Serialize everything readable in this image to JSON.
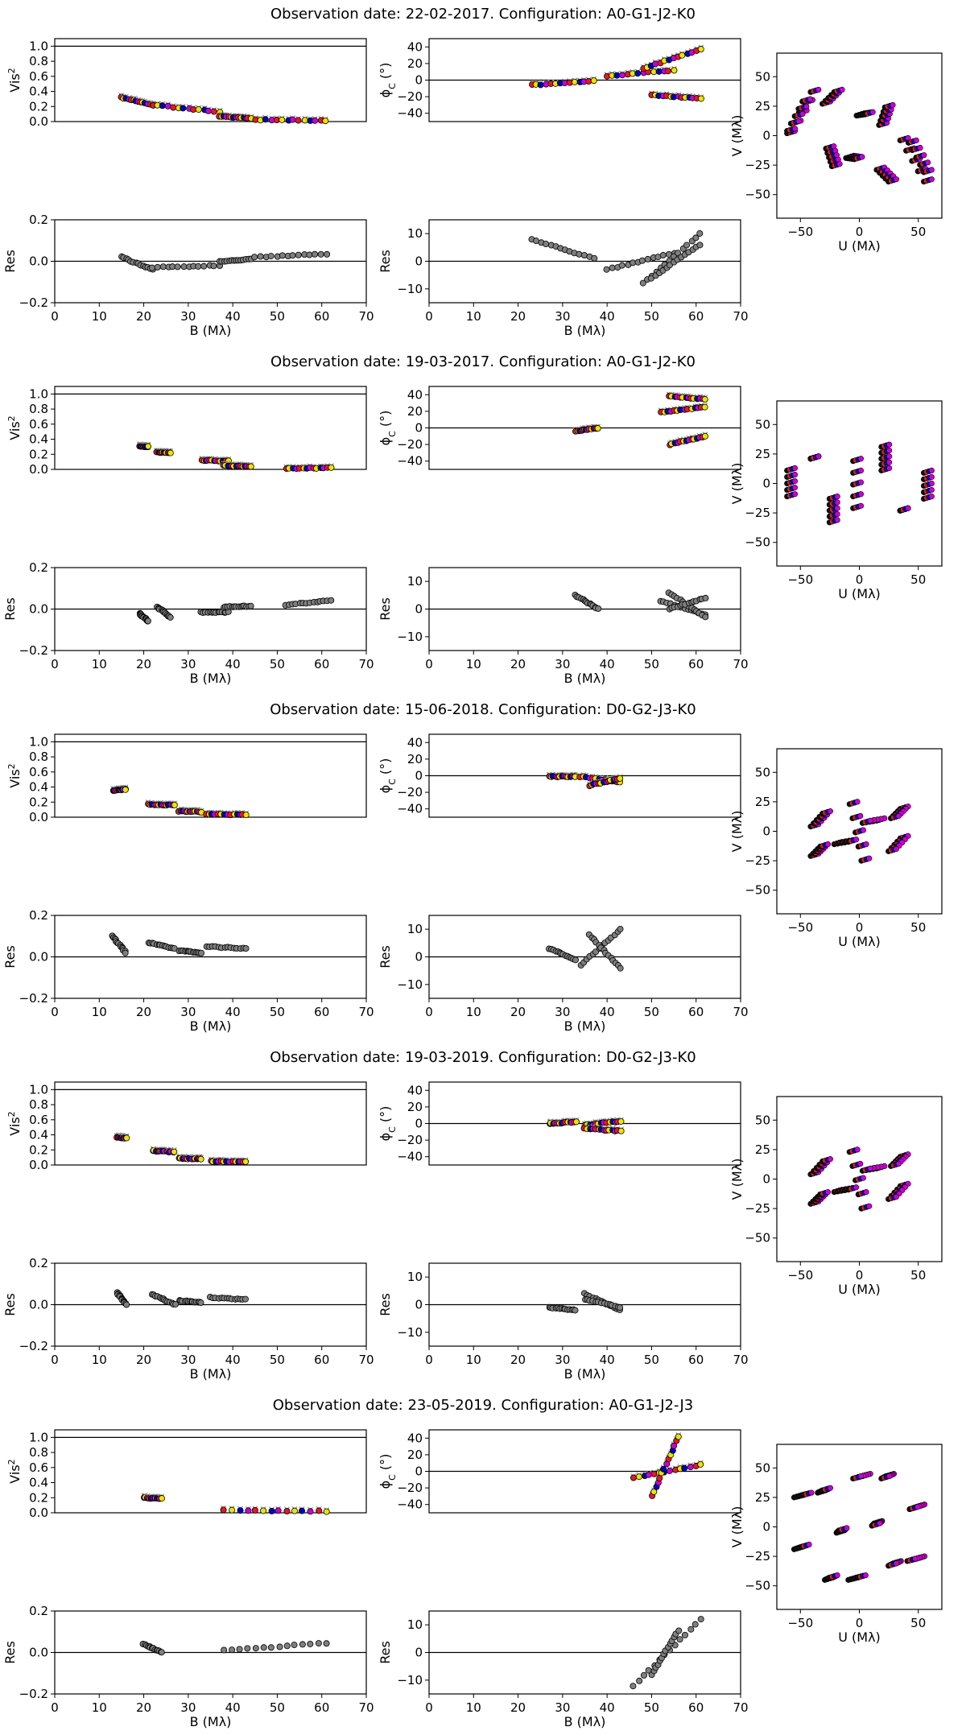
{
  "chart_data": {
    "type": "scatter",
    "figure": "Interferometric squared visibilities, closure phases and uv-coverage per observation epoch",
    "colors": {
      "axis": "#000000",
      "model": "#8c8c8c",
      "residual": "#7f7f7f",
      "channels": [
        "#e41a1c",
        "#e6e600",
        "#0000cc",
        "#cc00cc",
        "#111111"
      ]
    },
    "axis_labels": {
      "vis2_y": "Vis",
      "vis2_y_sup": "2",
      "phi_y": "ϕ",
      "phi_y_sub": "C",
      "phi_y_unit": " (°)",
      "res_y": "Res",
      "baseline_x": "B (Mλ)",
      "uv_x": "U (Mλ)",
      "uv_y": "V (Mλ)"
    },
    "ticks": {
      "vis2_y": [
        "0.0",
        "0.2",
        "0.4",
        "0.6",
        "0.8",
        "1.0"
      ],
      "vis2_res_y": [
        "−0.2",
        "0.0",
        "0.2"
      ],
      "phi_y": [
        "−40",
        "−20",
        "0",
        "20",
        "40"
      ],
      "phi_res_y": [
        "−10",
        "0",
        "10"
      ],
      "baseline_x": [
        "0",
        "10",
        "20",
        "30",
        "40",
        "50",
        "60",
        "70"
      ],
      "uv_x": [
        "−50",
        "0",
        "50"
      ],
      "uv_y": [
        "−50",
        "−25",
        "0",
        "25",
        "50"
      ]
    },
    "ranges": {
      "baseline_x": [
        0,
        70
      ],
      "vis2_y": [
        0,
        1.1
      ],
      "vis2_res_y": [
        -0.2,
        0.2
      ],
      "phi_y": [
        -50,
        50
      ],
      "phi_res_y": [
        -15,
        15
      ],
      "uv": [
        -70,
        70
      ]
    },
    "epochs": [
      {
        "title": "Observation date: 22-02-2017. Configuration: A0-G1-J2-K0",
        "vis2_groups": [
          {
            "x": [
              15,
              22
            ],
            "y": [
              0.32,
              0.22
            ],
            "res": [
              0.02,
              -0.04
            ]
          },
          {
            "x": [
              22,
              37
            ],
            "y": [
              0.22,
              0.13
            ],
            "res": [
              -0.03,
              -0.02
            ]
          },
          {
            "x": [
              37,
              44
            ],
            "y": [
              0.07,
              0.04
            ],
            "res": [
              0.0,
              0.01
            ]
          },
          {
            "x": [
              45,
              61
            ],
            "y": [
              0.025,
              0.015
            ],
            "res": [
              0.02,
              0.035
            ]
          }
        ],
        "phi_groups": [
          {
            "x": [
              23,
              37
            ],
            "y": [
              -6,
              -1
            ],
            "res": [
              8,
              1
            ]
          },
          {
            "x": [
              40,
              55
            ],
            "y": [
              5,
              12
            ],
            "res": [
              -3,
              3
            ]
          },
          {
            "x": [
              48,
              61
            ],
            "y": [
              14,
              37
            ],
            "res": [
              -8,
              10
            ]
          },
          {
            "x": [
              50,
              61
            ],
            "y": [
              -18,
              -22
            ],
            "res": [
              -6,
              6
            ]
          }
        ],
        "uv_groups": [
          {
            "u": [
              -58,
              -38
            ],
            "v": [
              3,
              38
            ]
          },
          {
            "u": [
              38,
              58
            ],
            "v": [
              -3,
              -38
            ]
          },
          {
            "u": [
              -28,
              -18
            ],
            "v": [
              28,
              38
            ]
          },
          {
            "u": [
              18,
              28
            ],
            "v": [
              -28,
              -38
            ]
          },
          {
            "u": [
              -25,
              -20
            ],
            "v": [
              -10,
              -25
            ]
          },
          {
            "u": [
              20,
              25
            ],
            "v": [
              10,
              25
            ]
          },
          {
            "u": [
              -8,
              -1
            ],
            "v": [
              -18,
              -19
            ]
          },
          {
            "u": [
              1,
              8
            ],
            "v": [
              18,
              19
            ]
          },
          {
            "u": [
              45,
              58
            ],
            "v": [
              -5,
              -30
            ]
          },
          {
            "u": [
              -58,
              -45
            ],
            "v": [
              5,
              30
            ]
          }
        ]
      },
      {
        "title": "Observation date: 19-03-2017. Configuration: A0-G1-J2-K0",
        "vis2_groups": [
          {
            "x": [
              19,
              21
            ],
            "y": [
              0.31,
              0.3
            ],
            "res": [
              -0.02,
              -0.06
            ]
          },
          {
            "x": [
              23,
              26
            ],
            "y": [
              0.23,
              0.22
            ],
            "res": [
              0.01,
              -0.04
            ]
          },
          {
            "x": [
              33,
              39
            ],
            "y": [
              0.12,
              0.11
            ],
            "res": [
              -0.015,
              -0.015
            ]
          },
          {
            "x": [
              38,
              44
            ],
            "y": [
              0.05,
              0.04
            ],
            "res": [
              0.01,
              0.015
            ]
          },
          {
            "x": [
              52,
              62
            ],
            "y": [
              0.015,
              0.02
            ],
            "res": [
              0.02,
              0.04
            ]
          }
        ],
        "phi_groups": [
          {
            "x": [
              33,
              38
            ],
            "y": [
              -4,
              0
            ],
            "res": [
              5,
              0
            ]
          },
          {
            "x": [
              52,
              62
            ],
            "y": [
              19,
              25
            ],
            "res": [
              3,
              -2
            ]
          },
          {
            "x": [
              54,
              62
            ],
            "y": [
              38,
              35
            ],
            "res": [
              6,
              -3
            ]
          },
          {
            "x": [
              54,
              62
            ],
            "y": [
              -20,
              -10
            ],
            "res": [
              0,
              4
            ]
          }
        ],
        "uv_groups": [
          {
            "u": [
              -58,
              -58
            ],
            "v": [
              12,
              -10
            ]
          },
          {
            "u": [
              58,
              58
            ],
            "v": [
              -12,
              10
            ]
          },
          {
            "u": [
              -38,
              -38
            ],
            "v": [
              22,
              22
            ]
          },
          {
            "u": [
              38,
              38
            ],
            "v": [
              -22,
              -22
            ]
          },
          {
            "u": [
              -22,
              -22
            ],
            "v": [
              -12,
              -32
            ]
          },
          {
            "u": [
              22,
              22
            ],
            "v": [
              12,
              32
            ]
          },
          {
            "u": [
              -2,
              -2
            ],
            "v": [
              20,
              -20
            ]
          }
        ]
      },
      {
        "title": "Observation date: 15-06-2018. Configuration: D0-G2-J3-K0",
        "vis2_groups": [
          {
            "x": [
              13,
              16
            ],
            "y": [
              0.35,
              0.37
            ],
            "res": [
              0.1,
              0.02
            ]
          },
          {
            "x": [
              21,
              27
            ],
            "y": [
              0.17,
              0.16
            ],
            "res": [
              0.07,
              0.04
            ]
          },
          {
            "x": [
              28,
              33
            ],
            "y": [
              0.08,
              0.07
            ],
            "res": [
              0.03,
              0.02
            ]
          },
          {
            "x": [
              34,
              43
            ],
            "y": [
              0.04,
              0.03
            ],
            "res": [
              0.05,
              0.04
            ]
          }
        ],
        "phi_groups": [
          {
            "x": [
              27,
              33
            ],
            "y": [
              -1,
              -1
            ],
            "res": [
              3,
              -1
            ]
          },
          {
            "x": [
              34,
              43
            ],
            "y": [
              -1,
              -8
            ],
            "res": [
              -3,
              10
            ]
          },
          {
            "x": [
              36,
              43
            ],
            "y": [
              -12,
              -3
            ],
            "res": [
              8,
              -4
            ]
          }
        ],
        "uv_groups": [
          {
            "u": [
              -38,
              -28
            ],
            "v": [
              5,
              16
            ]
          },
          {
            "u": [
              38,
              28
            ],
            "v": [
              -5,
              -16
            ]
          },
          {
            "u": [
              -38,
              -30
            ],
            "v": [
              -20,
              -12
            ]
          },
          {
            "u": [
              38,
              30
            ],
            "v": [
              20,
              12
            ]
          },
          {
            "u": [
              -18,
              -6
            ],
            "v": [
              -10,
              -8
            ]
          },
          {
            "u": [
              18,
              6
            ],
            "v": [
              10,
              8
            ]
          },
          {
            "u": [
              -5,
              5
            ],
            "v": [
              24,
              -24
            ]
          }
        ]
      },
      {
        "title": "Observation date: 19-03-2019. Configuration: D0-G2-J3-K0",
        "vis2_groups": [
          {
            "x": [
              14,
              16
            ],
            "y": [
              0.37,
              0.36
            ],
            "res": [
              0.06,
              0.0
            ]
          },
          {
            "x": [
              22,
              27
            ],
            "y": [
              0.19,
              0.17
            ],
            "res": [
              0.05,
              0.0
            ]
          },
          {
            "x": [
              28,
              33
            ],
            "y": [
              0.09,
              0.08
            ],
            "res": [
              0.02,
              0.01
            ]
          },
          {
            "x": [
              35,
              43
            ],
            "y": [
              0.05,
              0.04
            ],
            "res": [
              0.035,
              0.025
            ]
          }
        ],
        "phi_groups": [
          {
            "x": [
              27,
              33
            ],
            "y": [
              0,
              2
            ],
            "res": [
              -1,
              -2
            ]
          },
          {
            "x": [
              35,
              43
            ],
            "y": [
              -2,
              3
            ],
            "res": [
              4,
              -2
            ]
          },
          {
            "x": [
              35,
              43
            ],
            "y": [
              -6,
              -9
            ],
            "res": [
              2,
              -1
            ]
          }
        ],
        "uv_groups": [
          {
            "u": [
              -38,
              -28
            ],
            "v": [
              5,
              16
            ]
          },
          {
            "u": [
              38,
              28
            ],
            "v": [
              -5,
              -16
            ]
          },
          {
            "u": [
              -38,
              -30
            ],
            "v": [
              -20,
              -12
            ]
          },
          {
            "u": [
              38,
              30
            ],
            "v": [
              20,
              12
            ]
          },
          {
            "u": [
              -18,
              -6
            ],
            "v": [
              -10,
              -8
            ]
          },
          {
            "u": [
              18,
              6
            ],
            "v": [
              10,
              8
            ]
          },
          {
            "u": [
              -5,
              5
            ],
            "v": [
              24,
              -24
            ]
          }
        ]
      },
      {
        "title": "Observation date: 23-05-2019. Configuration: A0-G1-J2-J3",
        "vis2_groups": [
          {
            "x": [
              20,
              24
            ],
            "y": [
              0.2,
              0.19
            ],
            "res": [
              0.04,
              0.0
            ]
          },
          {
            "x": [
              38,
              61
            ],
            "y": [
              0.035,
              0.02
            ],
            "res": [
              0.01,
              0.045
            ]
          }
        ],
        "phi_groups": [
          {
            "x": [
              46,
              61
            ],
            "y": [
              -8,
              8
            ],
            "res": [
              -12,
              12
            ]
          },
          {
            "x": [
              50,
              56
            ],
            "y": [
              -30,
              42
            ],
            "res": [
              -8,
              8
            ]
          }
        ],
        "uv_groups": [
          {
            "u": [
              -52,
              -44
            ],
            "v": [
              26,
              28
            ]
          },
          {
            "u": [
              52,
              44
            ],
            "v": [
              -26,
              -28
            ]
          },
          {
            "u": [
              -32,
              -28
            ],
            "v": [
              30,
              32
            ]
          },
          {
            "u": [
              32,
              28
            ],
            "v": [
              -30,
              -32
            ]
          },
          {
            "u": [
              -52,
              -46
            ],
            "v": [
              -18,
              -16
            ]
          },
          {
            "u": [
              52,
              46
            ],
            "v": [
              18,
              16
            ]
          },
          {
            "u": [
              -26,
              -22
            ],
            "v": [
              -44,
              -42
            ]
          },
          {
            "u": [
              26,
              22
            ],
            "v": [
              44,
              42
            ]
          },
          {
            "u": [
              -6,
              2
            ],
            "v": [
              -44,
              -42
            ]
          },
          {
            "u": [
              6,
              -2
            ],
            "v": [
              44,
              42
            ]
          },
          {
            "u": [
              -16,
              -14
            ],
            "v": [
              -4,
              -2
            ]
          },
          {
            "u": [
              16,
              14
            ],
            "v": [
              4,
              2
            ]
          }
        ]
      }
    ]
  }
}
